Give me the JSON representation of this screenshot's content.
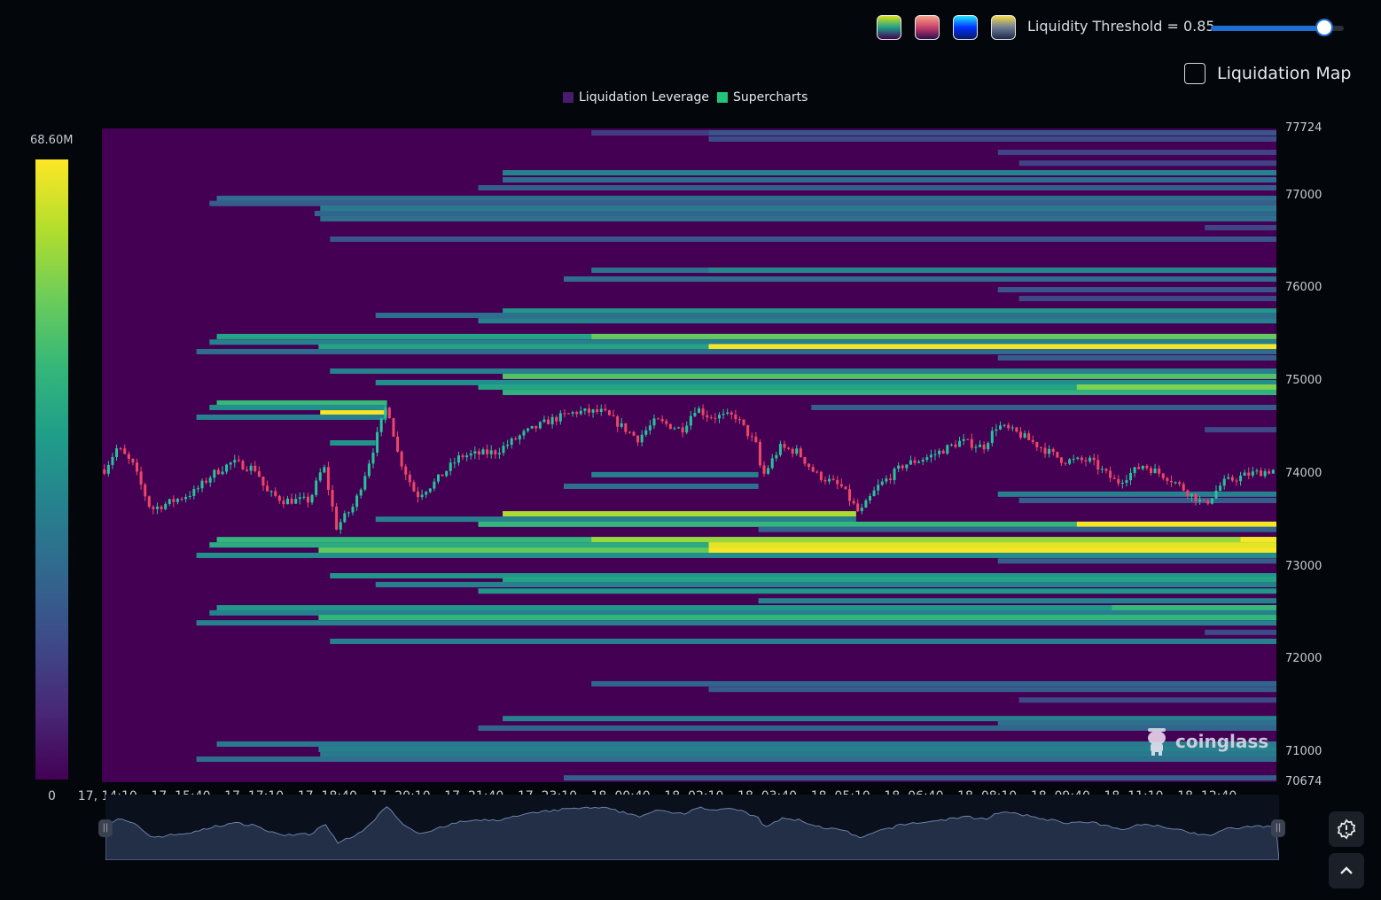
{
  "controls": {
    "palettes": [
      {
        "name": "viridis",
        "top": "#d8e219",
        "mid": "#1f9e89",
        "bottom": "#440154"
      },
      {
        "name": "magma",
        "top": "#f6a48a",
        "mid": "#c83e6a",
        "bottom": "#2c0f4f"
      },
      {
        "name": "jet",
        "top": "#22e6ff",
        "mid": "#0033ff",
        "bottom": "#061a6a"
      },
      {
        "name": "cividis",
        "top": "#f4d94e",
        "mid": "#6f7d93",
        "bottom": "#1b2a4a"
      }
    ],
    "threshold_label": "Liquidity Threshold = 0.85",
    "threshold_value": 0.85,
    "liquidation_map_label": "Liquidation Map",
    "liquidation_map_checked": false
  },
  "legend": [
    {
      "label": "Liquidation Leverage",
      "color": "#4a1a6e"
    },
    {
      "label": "Supercharts",
      "color": "#22c37a"
    }
  ],
  "colorbar": {
    "max_label": "68.60M",
    "min_label": "0",
    "max": 68.6,
    "min": 0
  },
  "watermark": "coinglass",
  "colors": {
    "background": "#440154",
    "up": "#26c49a",
    "down": "#ee4766",
    "nav_fill": "#232e47",
    "nav_line": "#6d80a8"
  },
  "chart_data": {
    "type": "heatmap",
    "title": "",
    "y_ticks": [
      "77724",
      "77000",
      "76000",
      "75000",
      "74000",
      "73000",
      "72000",
      "71000",
      "70674"
    ],
    "ylim": [
      70674,
      77724
    ],
    "x_ticks": [
      "17, 14:10",
      "17, 15:40",
      "17, 17:10",
      "17, 18:40",
      "17, 20:10",
      "17, 21:40",
      "17, 23:10",
      "18, 00:40",
      "18, 02:10",
      "18, 03:40",
      "18, 05:10",
      "18, 06:40",
      "18, 08:10",
      "18, 09:40",
      "18, 11:10",
      "18, 12:40"
    ],
    "xlim": [
      "17 14:07",
      "18 14:09"
    ],
    "band_columns": [
      "price",
      "from",
      "to",
      "liquidity_M"
    ],
    "bands": [
      [
        77676,
        "18 00:08",
        null,
        12
      ],
      [
        77676,
        "18 02:32",
        null,
        18
      ],
      [
        77610,
        "18 02:32",
        null,
        16
      ],
      [
        77466,
        "18 08:27",
        null,
        14
      ],
      [
        77350,
        "18 08:53",
        null,
        14
      ],
      [
        77246,
        "17 22:19",
        null,
        30
      ],
      [
        77170,
        "17 22:19",
        null,
        24
      ],
      [
        77084,
        "17 21:49",
        null,
        20
      ],
      [
        76970,
        "17 16:28",
        null,
        24
      ],
      [
        76915,
        "17 16:19",
        null,
        20
      ],
      [
        76864,
        "17 18:35",
        null,
        28
      ],
      [
        76807,
        "17 18:28",
        null,
        22
      ],
      [
        76750,
        "17 18:35",
        null,
        25
      ],
      [
        76654,
        "18 12:41",
        null,
        14
      ],
      [
        76530,
        "17 18:47",
        null,
        18
      ],
      [
        76195,
        "18 00:08",
        null,
        26
      ],
      [
        76195,
        "18 02:32",
        null,
        32
      ],
      [
        76100,
        "17 23:34",
        null,
        24
      ],
      [
        75985,
        "18 08:27",
        null,
        18
      ],
      [
        75890,
        "18 08:53",
        null,
        15
      ],
      [
        75755,
        "17 22:19",
        null,
        36
      ],
      [
        75708,
        "17 19:43",
        null,
        25
      ],
      [
        75650,
        "17 21:49",
        null,
        30
      ],
      [
        75480,
        "17 16:28",
        null,
        40
      ],
      [
        75480,
        "18 00:08",
        null,
        52
      ],
      [
        75420,
        "17 16:19",
        null,
        30
      ],
      [
        75370,
        "17 18:33",
        null,
        40
      ],
      [
        75370,
        "18 02:32",
        null,
        68
      ],
      [
        75317,
        "17 16:03",
        null,
        24
      ],
      [
        75250,
        "18 08:27",
        null,
        20
      ],
      [
        75107,
        "17 18:47",
        null,
        30
      ],
      [
        75050,
        "17 22:19",
        null,
        50
      ],
      [
        74983,
        "17 19:43",
        null,
        34
      ],
      [
        74935,
        "17 21:49",
        null,
        40
      ],
      [
        74935,
        "18 10:04",
        null,
        55
      ],
      [
        74877,
        "17 22:19",
        null,
        44
      ],
      [
        74763,
        "17 16:28",
        "17 19:57",
        46
      ],
      [
        74715,
        "17 16:19",
        "17 19:57",
        34
      ],
      [
        74657,
        "17 18:35",
        "17 19:57",
        68
      ],
      [
        74610,
        "17 16:03",
        "17 19:57",
        30
      ],
      [
        74715,
        "18 04:38",
        null,
        20
      ],
      [
        74475,
        "18 12:41",
        null,
        15
      ],
      [
        74333,
        "17 18:47",
        "17 19:43",
        35
      ],
      [
        73990,
        "18 00:08",
        "18 03:33",
        30
      ],
      [
        73865,
        "17 23:34",
        "18 03:33",
        25
      ],
      [
        73780,
        "18 08:27",
        null,
        30
      ],
      [
        73712,
        "18 08:53",
        null,
        20
      ],
      [
        73568,
        "17 22:19",
        "18 05:33",
        60
      ],
      [
        73510,
        "17 19:43",
        "18 05:33",
        30
      ],
      [
        73455,
        "17 21:49",
        null,
        45
      ],
      [
        73455,
        "18 10:04",
        null,
        68
      ],
      [
        73400,
        "18 03:33",
        null,
        22
      ],
      [
        73290,
        "17 16:28",
        null,
        45
      ],
      [
        73290,
        "18 00:08",
        null,
        58
      ],
      [
        73290,
        "18 13:25",
        null,
        68
      ],
      [
        73233,
        "17 16:19",
        null,
        42
      ],
      [
        73233,
        "18 02:32",
        null,
        66
      ],
      [
        73176,
        "17 18:33",
        null,
        52
      ],
      [
        73176,
        "18 02:32",
        null,
        68
      ],
      [
        73120,
        "17 16:03",
        null,
        34
      ],
      [
        73060,
        "18 08:27",
        null,
        20
      ],
      [
        72900,
        "17 18:47",
        null,
        36
      ],
      [
        72860,
        "17 22:19",
        null,
        40
      ],
      [
        72805,
        "17 19:43",
        null,
        30
      ],
      [
        72735,
        "17 21:49",
        null,
        36
      ],
      [
        72630,
        "18 03:33",
        null,
        30
      ],
      [
        72555,
        "17 16:28",
        null,
        36
      ],
      [
        72555,
        "18 10:47",
        null,
        46
      ],
      [
        72500,
        "17 16:19",
        null,
        30
      ],
      [
        72450,
        "17 18:33",
        null,
        45
      ],
      [
        72392,
        "17 16:03",
        null,
        30
      ],
      [
        72290,
        "18 12:41",
        null,
        15
      ],
      [
        72193,
        "17 18:47",
        null,
        30
      ],
      [
        71735,
        "18 00:08",
        null,
        22
      ],
      [
        71675,
        "18 02:32",
        null,
        20
      ],
      [
        71560,
        "18 08:53",
        null,
        15
      ],
      [
        71360,
        "17 22:19",
        null,
        30
      ],
      [
        71314,
        "18 08:27",
        null,
        25
      ],
      [
        71257,
        "17 21:49",
        null,
        22
      ],
      [
        71085,
        "17 16:28",
        null,
        28
      ],
      [
        71028,
        "17 18:33",
        null,
        30
      ],
      [
        70970,
        "17 18:35",
        null,
        28
      ],
      [
        70922,
        "17 16:03",
        null,
        25
      ],
      [
        70720,
        "17 23:34",
        null,
        20
      ]
    ],
    "price_path_columns": [
      "time",
      "price"
    ],
    "price_path": [
      [
        "17 14:10",
        74046
      ],
      [
        "17 14:26",
        74285
      ],
      [
        "17 14:45",
        74094
      ],
      [
        "17 15:07",
        73616
      ],
      [
        "17 15:28",
        73683
      ],
      [
        "17 16:01",
        73807
      ],
      [
        "17 16:23",
        73998
      ],
      [
        "17 16:47",
        74123
      ],
      [
        "17 17:17",
        74046
      ],
      [
        "17 17:28",
        73807
      ],
      [
        "17 17:50",
        73712
      ],
      [
        "17 18:22",
        73712
      ],
      [
        "17 18:39",
        74094
      ],
      [
        "17 18:55",
        73425
      ],
      [
        "17 19:17",
        73664
      ],
      [
        "17 19:39",
        74237
      ],
      [
        "17 19:57",
        74763
      ],
      [
        "17 20:11",
        74189
      ],
      [
        "17 20:33",
        73760
      ],
      [
        "17 20:55",
        73903
      ],
      [
        "17 21:27",
        74189
      ],
      [
        "17 22:11",
        74237
      ],
      [
        "17 22:44",
        74428
      ],
      [
        "17 23:16",
        74572
      ],
      [
        "17 23:49",
        74667
      ],
      [
        "18 00:22",
        74667
      ],
      [
        "18 00:43",
        74524
      ],
      [
        "18 01:05",
        74380
      ],
      [
        "18 01:27",
        74572
      ],
      [
        "18 01:59",
        74476
      ],
      [
        "18 02:16",
        74715
      ],
      [
        "18 02:32",
        74619
      ],
      [
        "18 03:05",
        74619
      ],
      [
        "18 03:32",
        74285
      ],
      [
        "18 03:37",
        73951
      ],
      [
        "18 03:59",
        74285
      ],
      [
        "18 04:21",
        74237
      ],
      [
        "18 04:43",
        73998
      ],
      [
        "18 05:15",
        73855
      ],
      [
        "18 05:37",
        73568
      ],
      [
        "18 05:59",
        73855
      ],
      [
        "18 06:31",
        74094
      ],
      [
        "18 07:04",
        74189
      ],
      [
        "18 07:42",
        74352
      ],
      [
        "18 08:09",
        74285
      ],
      [
        "18 08:26",
        74524
      ],
      [
        "18 08:53",
        74428
      ],
      [
        "18 09:20",
        74285
      ],
      [
        "18 09:47",
        74142
      ],
      [
        "18 10:20",
        74142
      ],
      [
        "18 10:53",
        73903
      ],
      [
        "18 11:25",
        74094
      ],
      [
        "18 11:58",
        73951
      ],
      [
        "18 12:41",
        73664
      ],
      [
        "18 13:03",
        73903
      ],
      [
        "18 13:36",
        73998
      ],
      [
        "18 14:09",
        74046
      ]
    ]
  }
}
